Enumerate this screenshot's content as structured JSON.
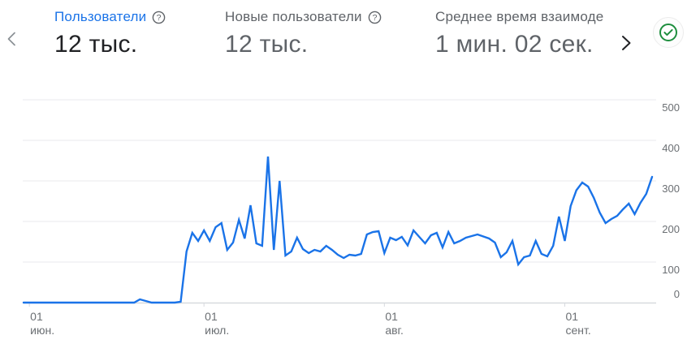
{
  "header": {
    "metrics": [
      {
        "label": "Пользователи",
        "value": "12 тыс.",
        "active": true,
        "has_help": true
      },
      {
        "label": "Новые пользователи",
        "value": "12 тыс.",
        "active": false,
        "has_help": true
      },
      {
        "label": "Среднее время взаимоде",
        "value": "1 мин. 02 сек.",
        "active": false,
        "has_help": false
      }
    ],
    "help_glyph": "?",
    "status_icon": "check-circle"
  },
  "chart_data": {
    "type": "line",
    "title": "Пользователи",
    "legend": "none",
    "grid": true,
    "y_axis_side": "right",
    "ylim": [
      0,
      500
    ],
    "y_ticks": [
      0,
      100,
      200,
      300,
      400,
      500
    ],
    "x_ticks": [
      {
        "day": "01",
        "month": "июн.",
        "index": 1
      },
      {
        "day": "01",
        "month": "июл.",
        "index": 31
      },
      {
        "day": "01",
        "month": "авг.",
        "index": 62
      },
      {
        "day": "01",
        "month": "сент.",
        "index": 93
      }
    ],
    "series": [
      {
        "name": "Пользователи",
        "color": "#1a73e8",
        "values": [
          0,
          0,
          0,
          0,
          0,
          0,
          0,
          0,
          0,
          0,
          0,
          0,
          0,
          0,
          0,
          0,
          0,
          0,
          0,
          0,
          8,
          4,
          0,
          0,
          0,
          0,
          0,
          2,
          126,
          172,
          152,
          178,
          152,
          186,
          196,
          130,
          148,
          204,
          158,
          240,
          146,
          140,
          360,
          130,
          300,
          116,
          126,
          160,
          132,
          122,
          130,
          126,
          140,
          130,
          118,
          110,
          118,
          116,
          120,
          168,
          174,
          176,
          122,
          160,
          154,
          162,
          141,
          178,
          162,
          146,
          166,
          172,
          136,
          174,
          146,
          152,
          160,
          164,
          168,
          163,
          158,
          148,
          112,
          124,
          152,
          94,
          112,
          116,
          152,
          120,
          114,
          140,
          212,
          152,
          238,
          277,
          296,
          286,
          258,
          222,
          196,
          206,
          214,
          230,
          244,
          218,
          246,
          268,
          310
        ]
      }
    ]
  },
  "colors": {
    "accent_blue": "#1a73e8",
    "text_dark": "#202124",
    "text_gray": "#5f6368",
    "axis_text": "#6b6f73",
    "grid_line": "#e9eaec",
    "axis_line": "#d7dade",
    "status_green": "#1e8e3e"
  }
}
